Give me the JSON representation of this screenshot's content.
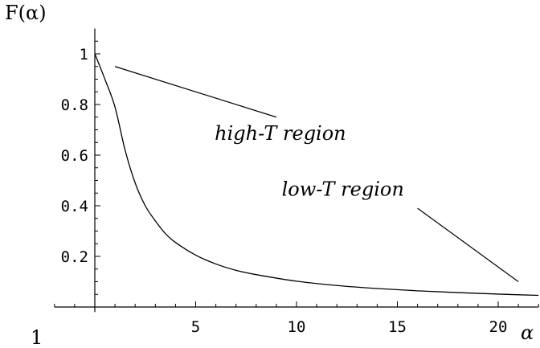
{
  "chart_data": {
    "type": "line",
    "ylabel": "F(α)",
    "xlabel": "α",
    "corner_label": "1",
    "xlim": [
      -2,
      22
    ],
    "ylim": [
      -0.02,
      1.1
    ],
    "x_ticks": [
      5,
      10,
      15,
      20
    ],
    "x_tick_labels": [
      "5",
      "10",
      "15",
      "20"
    ],
    "y_ticks": [
      0.2,
      0.4,
      0.6,
      0.8,
      1.0
    ],
    "y_tick_labels": [
      "0.2",
      "0.4",
      "0.6",
      "0.8",
      "1"
    ],
    "grid": false,
    "series": [
      {
        "x": [
          0,
          0.5,
          1,
          1.5,
          2,
          2.5,
          3,
          3.5,
          4,
          5,
          6,
          7,
          8,
          10,
          12,
          14,
          16,
          18,
          20,
          22
        ],
        "y": [
          1.0,
          0.9,
          0.79,
          0.62,
          0.49,
          0.4,
          0.34,
          0.29,
          0.255,
          0.205,
          0.17,
          0.145,
          0.128,
          0.102,
          0.085,
          0.073,
          0.064,
          0.057,
          0.051,
          0.046
        ]
      }
    ],
    "annotations": [
      {
        "text": "high-T region",
        "x": 9.2,
        "y": 0.66,
        "pointer": [
          [
            1.0,
            0.95
          ],
          [
            9.0,
            0.75
          ]
        ]
      },
      {
        "text": "low-T region",
        "x": 12.3,
        "y": 0.44,
        "pointer": [
          [
            16.0,
            0.39
          ],
          [
            21.0,
            0.1
          ]
        ]
      }
    ]
  }
}
